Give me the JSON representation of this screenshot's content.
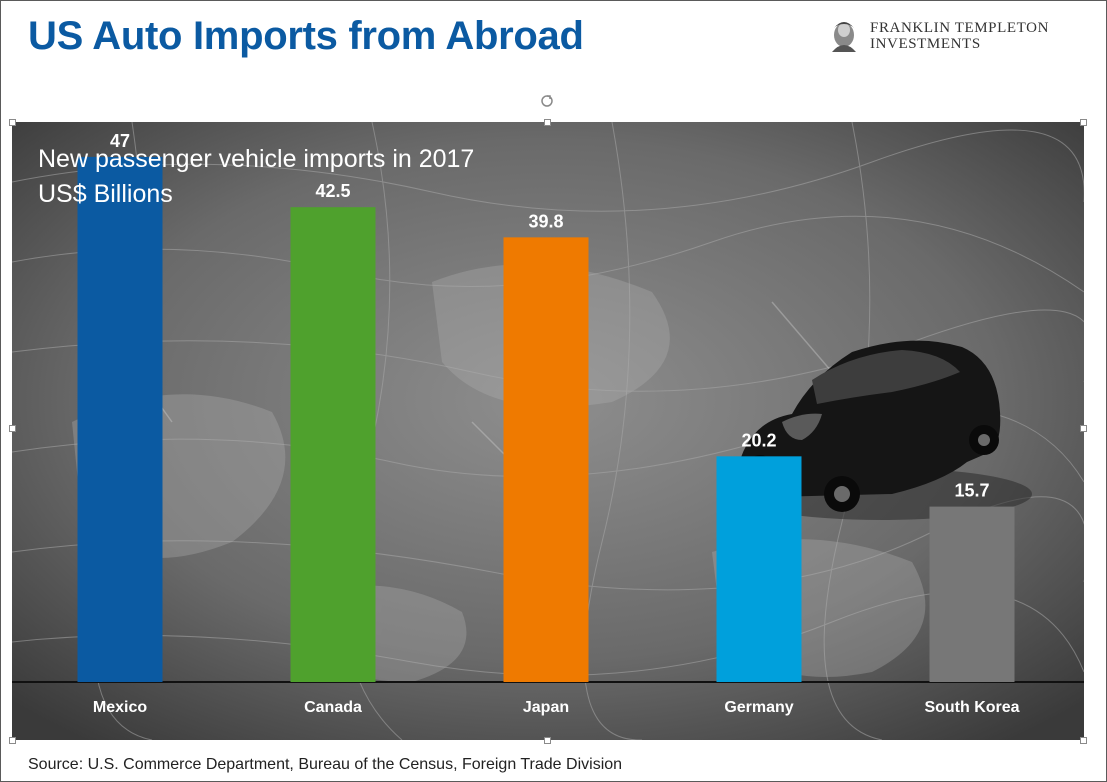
{
  "header": {
    "title": "US Auto Imports from Abroad",
    "logo_line1": "FRANKLIN TEMPLETON",
    "logo_line2": "INVESTMENTS"
  },
  "chart_data": {
    "type": "bar",
    "title": "New passenger vehicle imports in 2017",
    "subtitle": "US$ Billions",
    "categories": [
      "Mexico",
      "Canada",
      "Japan",
      "Germany",
      "South Korea"
    ],
    "values": [
      47,
      42.5,
      39.8,
      20.2,
      15.7
    ],
    "value_labels": [
      "47",
      "42.5",
      "39.8",
      "20.2",
      "15.7"
    ],
    "colors": [
      "#0b5aa2",
      "#4fa12d",
      "#ef7a00",
      "#00a0dc",
      "#777777"
    ],
    "ylim": [
      0,
      50
    ],
    "grid": false,
    "legend": "none"
  },
  "footer": {
    "source": "Source: U.S. Commerce Department, Bureau of the Census, Foreign Trade Division"
  }
}
